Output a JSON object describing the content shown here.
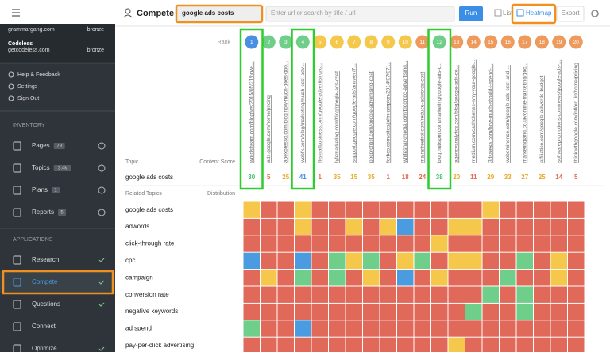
{
  "sidebar": {
    "accounts": [
      {
        "name": "grammargang.com",
        "tier": "bronze"
      },
      {
        "name": "Codeless",
        "domain": "getcodeless.com",
        "tier": "bronze"
      }
    ],
    "menu": [
      "Help & Feedback",
      "Settings",
      "Sign Out"
    ],
    "inventory": {
      "title": "INVENTORY",
      "items": [
        {
          "label": "Pages",
          "count": 79
        },
        {
          "label": "Topics",
          "count": "3.4k"
        },
        {
          "label": "Plans",
          "count": 1
        },
        {
          "label": "Reports",
          "count": 5
        }
      ]
    },
    "applications": {
      "title": "APPLICATIONS",
      "items": [
        "Research",
        "Compete",
        "Questions",
        "Connect",
        "Optimize"
      ]
    }
  },
  "header": {
    "title": "Compete",
    "query": "google ads costs",
    "url_placeholder": "Enter url or search by title / url",
    "run": "Run",
    "list": "List",
    "heatmap": "Heatmap",
    "export": "Export"
  },
  "results": {
    "rank_label": "Rank",
    "topic_label": "Topic",
    "score_label": "Content Score",
    "topic": "google ads costs",
    "related_label": "Related Topics",
    "distribution_label": "Distribution",
    "columns": [
      {
        "rank": 1,
        "color": "#4a90e2",
        "url": "wordstream.com/blog/ws/2015/05/21/how-...",
        "score": 30,
        "score_color": "#3fbf6e"
      },
      {
        "rank": 2,
        "color": "#6fcf8a",
        "url": "ads.google.com/home/pricing",
        "score": 5,
        "score_color": "#e46a4f"
      },
      {
        "rank": 3,
        "color": "#6fcf8a",
        "url": "abexpresso.com/blog/how-much-does-goo...",
        "score": 25,
        "score_color": "#e8a92c"
      },
      {
        "rank": 4,
        "color": "#6fcf8a",
        "url": "webfx.com/blog/marketing/much-cost-adv...",
        "score": 41,
        "score_color": "#3d8fe0"
      },
      {
        "rank": 5,
        "color": "#f5c84c",
        "url": "fitsmallbusiness.com/google-advertising-c...",
        "score": 1,
        "score_color": "#e46a4f"
      },
      {
        "rank": 6,
        "color": "#f5c84c",
        "url": "lyfemarketing.com/blog/google-ads-cost",
        "score": 35,
        "score_color": "#e8a92c"
      },
      {
        "rank": 7,
        "color": "#f5c84c",
        "url": "support.google.com/google-ads/answer/7...",
        "score": 15,
        "score_color": "#e8a92c"
      },
      {
        "rank": 8,
        "color": "#f5c84c",
        "url": "ppcprofitist.com/google-advertising-cost",
        "score": 35,
        "score_color": "#e8a92c"
      },
      {
        "rank": 9,
        "color": "#f5c84c",
        "url": "forbes.com/sites/johnrampton/2014/07/07/...",
        "score": 1,
        "score_color": "#e46a4f"
      },
      {
        "rank": 10,
        "color": "#f5c84c",
        "url": "whitesharkmedia.com/blog/ppc-advertising...",
        "score": 18,
        "score_color": "#e46a4f"
      },
      {
        "rank": 11,
        "color": "#ee9a5c",
        "url": "mainstreetroi.com/reduce-adwords-cost",
        "score": 24,
        "score_color": "#e46a4f"
      },
      {
        "rank": 12,
        "color": "#6fcf8a",
        "url": "blog.hubspot.com/marketing/google-ads-c...",
        "score": 38,
        "score_color": "#3fbf6e"
      },
      {
        "rank": 13,
        "color": "#ee9a5c",
        "url": "agencyanalytics.com/blog/google-ads-co...",
        "score": 20,
        "score_color": "#e8a92c"
      },
      {
        "rank": 14,
        "color": "#ee9a5c",
        "url": "medium.com/cashchenes-why-your-google...",
        "score": 11,
        "score_color": "#e46a4f"
      },
      {
        "rank": 15,
        "color": "#ee9a5c",
        "url": "3dsalexa.com/how-much-should-i-spend-...",
        "score": 29,
        "score_color": "#e8a92c"
      },
      {
        "rank": 16,
        "color": "#ee9a5c",
        "url": "webeminence.com/google-ads-cost-and-...",
        "score": 33,
        "score_color": "#e8a92c"
      },
      {
        "rank": 17,
        "color": "#ee9a5c",
        "url": "marketingland.co.uk/online-marketing/goo...",
        "score": 27,
        "score_color": "#e8a92c"
      },
      {
        "rank": 18,
        "color": "#ee9a5c",
        "url": "affiliatico.com/google-adwords-budget",
        "score": 25,
        "score_color": "#e8a92c"
      },
      {
        "rank": 19,
        "color": "#ee9a5c",
        "url": "softwarepromotions.com/news/google-ads-...",
        "score": 14,
        "score_color": "#e46a4f"
      },
      {
        "rank": 20,
        "color": "#ee9a5c",
        "url": "thinkwithgoogle.com/intl/en_in/home/pricing",
        "score": 5,
        "score_color": "#e46a4f"
      }
    ]
  },
  "heatmap": {
    "palette": {
      "r": "#e0695a",
      "y": "#f5c84c",
      "g": "#6fcf8a",
      "b": "#4a9be0"
    },
    "rows": [
      {
        "topic": "google ads costs",
        "cells": [
          "y",
          "r",
          "r",
          "y",
          "r",
          "r",
          "r",
          "r",
          "r",
          "r",
          "r",
          "r",
          "r",
          "r",
          "y",
          "r",
          "r",
          "r",
          "r",
          "r"
        ]
      },
      {
        "topic": "adwords",
        "cells": [
          "r",
          "r",
          "r",
          "y",
          "r",
          "r",
          "y",
          "r",
          "y",
          "b",
          "r",
          "r",
          "y",
          "y",
          "r",
          "r",
          "r",
          "r",
          "r",
          "r"
        ]
      },
      {
        "topic": "click-through rate",
        "cells": [
          "r",
          "r",
          "r",
          "r",
          "r",
          "r",
          "r",
          "r",
          "r",
          "r",
          "r",
          "y",
          "r",
          "r",
          "r",
          "r",
          "r",
          "r",
          "r",
          "r"
        ]
      },
      {
        "topic": "cpc",
        "cells": [
          "b",
          "r",
          "r",
          "b",
          "r",
          "g",
          "y",
          "g",
          "r",
          "y",
          "g",
          "r",
          "y",
          "y",
          "r",
          "r",
          "g",
          "r",
          "y",
          "r"
        ]
      },
      {
        "topic": "campaign",
        "cells": [
          "r",
          "y",
          "r",
          "g",
          "r",
          "g",
          "r",
          "y",
          "r",
          "b",
          "r",
          "y",
          "r",
          "r",
          "r",
          "g",
          "r",
          "r",
          "y",
          "r"
        ]
      },
      {
        "topic": "conversion rate",
        "cells": [
          "r",
          "r",
          "r",
          "r",
          "r",
          "r",
          "r",
          "r",
          "r",
          "r",
          "r",
          "r",
          "r",
          "r",
          "g",
          "r",
          "g",
          "r",
          "r",
          "r"
        ]
      },
      {
        "topic": "negative keywords",
        "cells": [
          "r",
          "r",
          "r",
          "r",
          "r",
          "r",
          "r",
          "r",
          "r",
          "r",
          "r",
          "r",
          "r",
          "g",
          "r",
          "r",
          "g",
          "r",
          "r",
          "r"
        ]
      },
      {
        "topic": "ad spend",
        "cells": [
          "g",
          "r",
          "r",
          "b",
          "r",
          "r",
          "r",
          "r",
          "r",
          "r",
          "r",
          "r",
          "r",
          "r",
          "r",
          "r",
          "r",
          "r",
          "r",
          "r"
        ]
      },
      {
        "topic": "pay-per-click advertising",
        "cells": [
          "r",
          "r",
          "r",
          "r",
          "r",
          "r",
          "r",
          "r",
          "r",
          "r",
          "r",
          "r",
          "y",
          "r",
          "r",
          "r",
          "r",
          "r",
          "r",
          "r"
        ]
      }
    ]
  }
}
